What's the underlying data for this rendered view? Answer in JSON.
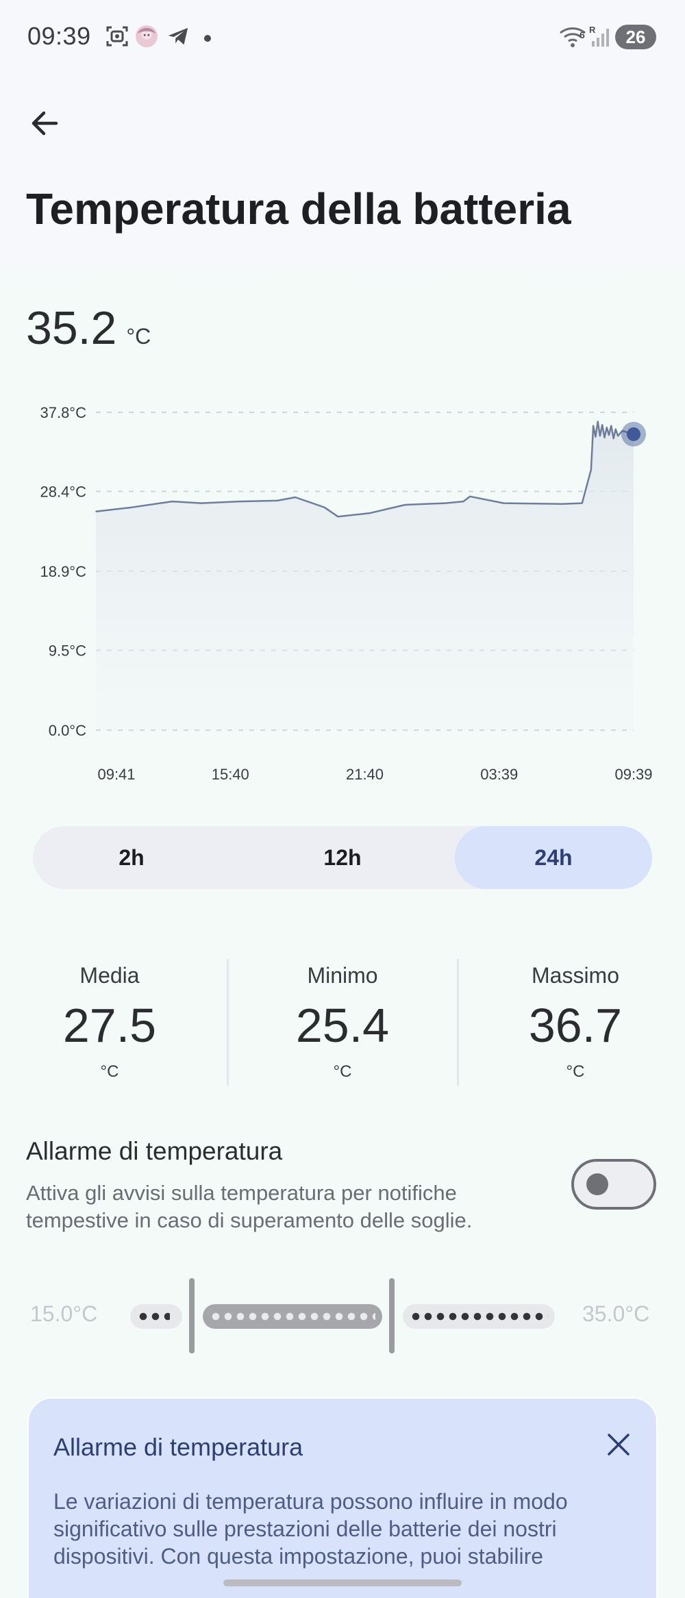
{
  "status_bar": {
    "time": "09:39",
    "battery_level": "26",
    "icons": [
      "screenshot-icon",
      "avatar-icon",
      "telegram-icon",
      "dot-icon",
      "wifi-icon",
      "signal-icon"
    ]
  },
  "header": {
    "title": "Temperatura della batteria"
  },
  "current": {
    "value": "35.2",
    "unit": "°C"
  },
  "chart_data": {
    "type": "area",
    "title": "",
    "xlabel": "",
    "ylabel": "",
    "ylim": [
      0,
      37.8
    ],
    "y_ticks": [
      "37.8°C",
      "28.4°C",
      "18.9°C",
      "9.5°C",
      "0.0°C"
    ],
    "y_tick_values": [
      37.8,
      28.4,
      18.9,
      9.5,
      0.0
    ],
    "x_ticks": [
      "09:41",
      "15:40",
      "21:40",
      "03:39",
      "09:39"
    ],
    "x_range_hours": [
      0,
      24
    ],
    "grid": "horizontal-dashed",
    "series": [
      {
        "x": [
          0,
          1.6,
          3.4,
          4.7,
          6.4,
          8.1,
          8.9,
          10.2,
          10.8,
          12.2,
          13.8,
          15.6,
          16.4,
          16.7,
          18.2,
          20.8,
          21.7,
          22.1,
          22.2,
          22.3,
          22.4,
          22.5,
          22.6,
          22.7,
          22.8,
          22.9,
          23.0,
          23.1,
          23.2,
          23.3,
          23.5,
          24.0
        ],
        "values": [
          26.0,
          26.5,
          27.2,
          27.0,
          27.2,
          27.3,
          27.7,
          26.5,
          25.4,
          25.8,
          26.8,
          27.0,
          27.2,
          27.8,
          27.0,
          26.9,
          27.0,
          31.0,
          36.2,
          34.9,
          36.7,
          35.0,
          36.3,
          34.8,
          36.0,
          35.1,
          36.2,
          34.7,
          35.8,
          35.0,
          35.6,
          35.2
        ]
      }
    ],
    "line_color": "#6f7d9c",
    "marker_color": "#3f5a96"
  },
  "range_tabs": {
    "options": [
      "2h",
      "12h",
      "24h"
    ],
    "selected": "24h"
  },
  "stats": {
    "avg": {
      "label": "Media",
      "value": "27.5",
      "unit": "°C"
    },
    "min": {
      "label": "Minimo",
      "value": "25.4",
      "unit": "°C"
    },
    "max": {
      "label": "Massimo",
      "value": "36.7",
      "unit": "°C"
    }
  },
  "alarm": {
    "title": "Allarme di temperatura",
    "description": "Attiva gli avvisi sulla temperatura per notifiche tempestive in caso di superamento delle soglie.",
    "enabled": false
  },
  "threshold": {
    "min_label": "15.0°C",
    "max_label": "35.0°C"
  },
  "info_card": {
    "title": "Allarme di temperatura",
    "text": "Le variazioni di temperatura possono influire in modo significativo sulle prestazioni delle batterie dei nostri dispositivi. Con questa impostazione, puoi stabilire"
  },
  "colors": {
    "accent": "#d9e2fb",
    "accent_text": "#2c3e74",
    "background": "#f4faf8"
  }
}
